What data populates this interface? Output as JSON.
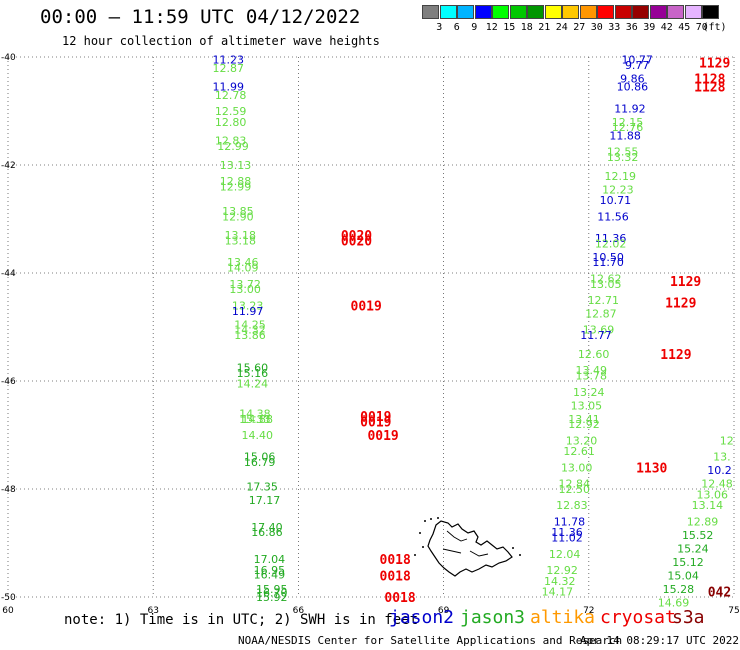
{
  "header": {
    "title": "00:00 – 11:59 UTC 04/12/2022",
    "subtitle": "12 hour collection of altimeter wave heights"
  },
  "legend": {
    "unit": "(ft)",
    "bins": [
      {
        "label": "3",
        "color": "#7f7f7f"
      },
      {
        "label": "6",
        "color": "#00ffff"
      },
      {
        "label": "9",
        "color": "#00b4ff"
      },
      {
        "label": "12",
        "color": "#0000ff"
      },
      {
        "label": "15",
        "color": "#00ff00"
      },
      {
        "label": "18",
        "color": "#00c800"
      },
      {
        "label": "21",
        "color": "#009600"
      },
      {
        "label": "24",
        "color": "#ffff00"
      },
      {
        "label": "27",
        "color": "#ffc800"
      },
      {
        "label": "30",
        "color": "#ff9600"
      },
      {
        "label": "33",
        "color": "#ff0000"
      },
      {
        "label": "36",
        "color": "#c80000"
      },
      {
        "label": "39",
        "color": "#960000"
      },
      {
        "label": "42",
        "color": "#960096"
      },
      {
        "label": "45",
        "color": "#c864c8"
      },
      {
        "label": "70",
        "color": "#e6b4ff"
      },
      {
        "label": "",
        "color": "#000000"
      }
    ]
  },
  "map": {
    "lon_range": [
      60,
      75
    ],
    "lat_range": [
      -50,
      -40
    ],
    "lon_ticks": [
      "60",
      "63",
      "66",
      "69",
      "72",
      "75"
    ],
    "lat_ticks": [
      "-40",
      "-42",
      "-44",
      "-46",
      "-48",
      "-50"
    ]
  },
  "colors": {
    "jason2": "#0000cc",
    "jason3": "#22aa22",
    "jason3_obs": "#66dd44",
    "altika": "#ff9900",
    "cryosat": "#ee0000",
    "s3a": "#880000"
  },
  "observations": [
    {
      "lon": 64.55,
      "lat": -40.05,
      "v": "11.23",
      "s": "jason2"
    },
    {
      "lon": 64.55,
      "lat": -40.2,
      "v": "12.87",
      "s": "jason3_obs"
    },
    {
      "lon": 64.55,
      "lat": -40.55,
      "v": "11.99",
      "s": "jason2"
    },
    {
      "lon": 64.6,
      "lat": -40.7,
      "v": "12.78",
      "s": "jason3_obs"
    },
    {
      "lon": 64.6,
      "lat": -41.0,
      "v": "12.59",
      "s": "jason3_obs"
    },
    {
      "lon": 64.6,
      "lat": -41.2,
      "v": "12.80",
      "s": "jason3_obs"
    },
    {
      "lon": 64.6,
      "lat": -41.55,
      "v": "12.83",
      "s": "jason3_obs"
    },
    {
      "lon": 64.65,
      "lat": -41.65,
      "v": "12.99",
      "s": "jason3_obs"
    },
    {
      "lon": 64.7,
      "lat": -42.0,
      "v": "13.13",
      "s": "jason3_obs"
    },
    {
      "lon": 64.7,
      "lat": -42.3,
      "v": "12.88",
      "s": "jason3_obs"
    },
    {
      "lon": 64.7,
      "lat": -42.4,
      "v": "12.99",
      "s": "jason3_obs"
    },
    {
      "lon": 64.75,
      "lat": -42.85,
      "v": "13.85",
      "s": "jason3_obs"
    },
    {
      "lon": 64.75,
      "lat": -42.95,
      "v": "12.90",
      "s": "jason3_obs"
    },
    {
      "lon": 64.8,
      "lat": -43.3,
      "v": "13.18",
      "s": "jason3_obs"
    },
    {
      "lon": 64.8,
      "lat": -43.4,
      "v": "13.18",
      "s": "jason3_obs"
    },
    {
      "lon": 64.85,
      "lat": -43.8,
      "v": "13.46",
      "s": "jason3_obs"
    },
    {
      "lon": 64.85,
      "lat": -43.9,
      "v": "14.09",
      "s": "jason3_obs"
    },
    {
      "lon": 64.9,
      "lat": -44.2,
      "v": "13.72",
      "s": "jason3_obs"
    },
    {
      "lon": 64.9,
      "lat": -44.3,
      "v": "13.00",
      "s": "jason3_obs"
    },
    {
      "lon": 64.95,
      "lat": -44.6,
      "v": "13.23",
      "s": "jason3_obs"
    },
    {
      "lon": 64.95,
      "lat": -44.7,
      "v": "11.97",
      "s": "jason2"
    },
    {
      "lon": 65.0,
      "lat": -44.95,
      "v": "14.25",
      "s": "jason3_obs"
    },
    {
      "lon": 65.0,
      "lat": -45.05,
      "v": "14.32",
      "s": "jason3_obs"
    },
    {
      "lon": 65.0,
      "lat": -45.15,
      "v": "13.86",
      "s": "jason3_obs"
    },
    {
      "lon": 65.05,
      "lat": -45.75,
      "v": "15.60",
      "s": "jason3"
    },
    {
      "lon": 65.05,
      "lat": -45.85,
      "v": "15.16",
      "s": "jason3"
    },
    {
      "lon": 65.05,
      "lat": -46.05,
      "v": "14.24",
      "s": "jason3_obs"
    },
    {
      "lon": 65.1,
      "lat": -46.6,
      "v": "14.38",
      "s": "jason3_obs"
    },
    {
      "lon": 65.1,
      "lat": -46.7,
      "v": "15.33",
      "s": "jason3_obs"
    },
    {
      "lon": 65.15,
      "lat": -46.7,
      "v": "14.88",
      "s": "jason3_obs"
    },
    {
      "lon": 65.15,
      "lat": -47.0,
      "v": "14.40",
      "s": "jason3_obs"
    },
    {
      "lon": 65.2,
      "lat": -47.4,
      "v": "15.06",
      "s": "jason3"
    },
    {
      "lon": 65.2,
      "lat": -47.5,
      "v": "16.79",
      "s": "jason3"
    },
    {
      "lon": 65.25,
      "lat": -47.95,
      "v": "17.35",
      "s": "jason3"
    },
    {
      "lon": 65.3,
      "lat": -48.2,
      "v": "17.17",
      "s": "jason3"
    },
    {
      "lon": 65.35,
      "lat": -48.7,
      "v": "17.40",
      "s": "jason3"
    },
    {
      "lon": 65.35,
      "lat": -48.8,
      "v": "16.86",
      "s": "jason3"
    },
    {
      "lon": 65.4,
      "lat": -49.3,
      "v": "17.04",
      "s": "jason3"
    },
    {
      "lon": 65.4,
      "lat": -49.5,
      "v": "16.95",
      "s": "jason3"
    },
    {
      "lon": 65.4,
      "lat": -49.58,
      "v": "16.49",
      "s": "jason3"
    },
    {
      "lon": 65.45,
      "lat": -49.85,
      "v": "15.95",
      "s": "jason3"
    },
    {
      "lon": 65.45,
      "lat": -49.92,
      "v": "16.70",
      "s": "jason3"
    },
    {
      "lon": 65.45,
      "lat": -50.0,
      "v": "15.92",
      "s": "jason3"
    },
    {
      "lon": 73.0,
      "lat": -40.05,
      "v": "10.77",
      "s": "jason2"
    },
    {
      "lon": 73.0,
      "lat": -40.15,
      "v": "9.77",
      "s": "jason2"
    },
    {
      "lon": 72.9,
      "lat": -40.4,
      "v": "9.86",
      "s": "jason2"
    },
    {
      "lon": 72.9,
      "lat": -40.55,
      "v": "10.86",
      "s": "jason2"
    },
    {
      "lon": 72.85,
      "lat": -40.95,
      "v": "11.92",
      "s": "jason2"
    },
    {
      "lon": 72.8,
      "lat": -41.2,
      "v": "12.15",
      "s": "jason3_obs"
    },
    {
      "lon": 72.8,
      "lat": -41.3,
      "v": "12.76",
      "s": "jason3_obs"
    },
    {
      "lon": 72.75,
      "lat": -41.45,
      "v": "11.88",
      "s": "jason2"
    },
    {
      "lon": 72.7,
      "lat": -41.75,
      "v": "12.55",
      "s": "jason3_obs"
    },
    {
      "lon": 72.7,
      "lat": -41.85,
      "v": "13.32",
      "s": "jason3_obs"
    },
    {
      "lon": 72.65,
      "lat": -42.2,
      "v": "12.19",
      "s": "jason3_obs"
    },
    {
      "lon": 72.6,
      "lat": -42.45,
      "v": "12.23",
      "s": "jason3_obs"
    },
    {
      "lon": 72.55,
      "lat": -42.65,
      "v": "10.71",
      "s": "jason2"
    },
    {
      "lon": 72.5,
      "lat": -42.95,
      "v": "11.56",
      "s": "jason2"
    },
    {
      "lon": 72.45,
      "lat": -43.35,
      "v": "11.36",
      "s": "jason2"
    },
    {
      "lon": 72.45,
      "lat": -43.45,
      "v": "12.02",
      "s": "jason3_obs"
    },
    {
      "lon": 72.4,
      "lat": -43.7,
      "v": "10.50",
      "s": "jason2"
    },
    {
      "lon": 72.4,
      "lat": -43.8,
      "v": "11.70",
      "s": "jason2"
    },
    {
      "lon": 72.35,
      "lat": -44.1,
      "v": "12.62",
      "s": "jason3_obs"
    },
    {
      "lon": 72.35,
      "lat": -44.2,
      "v": "13.05",
      "s": "jason3_obs"
    },
    {
      "lon": 72.3,
      "lat": -44.5,
      "v": "12.71",
      "s": "jason3_obs"
    },
    {
      "lon": 72.25,
      "lat": -44.75,
      "v": "12.87",
      "s": "jason3_obs"
    },
    {
      "lon": 72.2,
      "lat": -45.05,
      "v": "13.69",
      "s": "jason3_obs"
    },
    {
      "lon": 72.15,
      "lat": -45.15,
      "v": "11.77",
      "s": "jason2"
    },
    {
      "lon": 72.1,
      "lat": -45.5,
      "v": "12.60",
      "s": "jason3_obs"
    },
    {
      "lon": 72.05,
      "lat": -45.8,
      "v": "13.49",
      "s": "jason3_obs"
    },
    {
      "lon": 72.05,
      "lat": -45.9,
      "v": "13.78",
      "s": "jason3_obs"
    },
    {
      "lon": 72.0,
      "lat": -46.2,
      "v": "13.24",
      "s": "jason3_obs"
    },
    {
      "lon": 71.95,
      "lat": -46.45,
      "v": "13.05",
      "s": "jason3_obs"
    },
    {
      "lon": 71.9,
      "lat": -46.7,
      "v": "13.41",
      "s": "jason3_obs"
    },
    {
      "lon": 71.9,
      "lat": -46.8,
      "v": "12.92",
      "s": "jason3_obs"
    },
    {
      "lon": 71.85,
      "lat": -47.1,
      "v": "13.20",
      "s": "jason3_obs"
    },
    {
      "lon": 71.8,
      "lat": -47.3,
      "v": "12.61",
      "s": "jason3_obs"
    },
    {
      "lon": 71.75,
      "lat": -47.6,
      "v": "13.00",
      "s": "jason3_obs"
    },
    {
      "lon": 71.7,
      "lat": -47.9,
      "v": "12.84",
      "s": "jason3_obs"
    },
    {
      "lon": 71.7,
      "lat": -48.0,
      "v": "12.50",
      "s": "jason3_obs"
    },
    {
      "lon": 71.65,
      "lat": -48.3,
      "v": "12.83",
      "s": "jason3_obs"
    },
    {
      "lon": 71.6,
      "lat": -48.6,
      "v": "11.78",
      "s": "jason2"
    },
    {
      "lon": 71.55,
      "lat": -48.8,
      "v": "11.36",
      "s": "jason2"
    },
    {
      "lon": 71.55,
      "lat": -48.9,
      "v": "11.02",
      "s": "jason2"
    },
    {
      "lon": 71.5,
      "lat": -49.2,
      "v": "12.04",
      "s": "jason3_obs"
    },
    {
      "lon": 71.45,
      "lat": -49.5,
      "v": "12.92",
      "s": "jason3_obs"
    },
    {
      "lon": 71.4,
      "lat": -49.7,
      "v": "14.32",
      "s": "jason3_obs"
    },
    {
      "lon": 71.35,
      "lat": -49.9,
      "v": "14.17",
      "s": "jason3_obs"
    },
    {
      "lon": 74.85,
      "lat": -47.1,
      "v": "12",
      "s": "jason3_obs"
    },
    {
      "lon": 74.75,
      "lat": -47.4,
      "v": "13.",
      "s": "jason3_obs"
    },
    {
      "lon": 74.7,
      "lat": -47.65,
      "v": "10.2",
      "s": "jason2"
    },
    {
      "lon": 74.65,
      "lat": -47.9,
      "v": "12.48",
      "s": "jason3_obs"
    },
    {
      "lon": 74.55,
      "lat": -48.1,
      "v": "13.06",
      "s": "jason3_obs"
    },
    {
      "lon": 74.45,
      "lat": -48.3,
      "v": "13.14",
      "s": "jason3_obs"
    },
    {
      "lon": 74.35,
      "lat": -48.6,
      "v": "12.89",
      "s": "jason3_obs"
    },
    {
      "lon": 74.25,
      "lat": -48.85,
      "v": "15.52",
      "s": "jason3"
    },
    {
      "lon": 74.15,
      "lat": -49.1,
      "v": "15.24",
      "s": "jason3"
    },
    {
      "lon": 74.05,
      "lat": -49.35,
      "v": "15.12",
      "s": "jason3"
    },
    {
      "lon": 73.95,
      "lat": -49.6,
      "v": "15.04",
      "s": "jason3"
    },
    {
      "lon": 73.85,
      "lat": -49.85,
      "v": "15.28",
      "s": "jason3"
    },
    {
      "lon": 73.75,
      "lat": -50.1,
      "v": "14.69",
      "s": "jason3_obs"
    }
  ],
  "pass_times": [
    {
      "lon": 67.2,
      "lat": -43.3,
      "v": "0020",
      "s": "cryosat"
    },
    {
      "lon": 67.2,
      "lat": -43.4,
      "v": "0020",
      "s": "cryosat"
    },
    {
      "lon": 67.4,
      "lat": -44.6,
      "v": "0019",
      "s": "cryosat"
    },
    {
      "lon": 67.6,
      "lat": -46.65,
      "v": "0019",
      "s": "cryosat"
    },
    {
      "lon": 67.6,
      "lat": -46.75,
      "v": "0019",
      "s": "cryosat"
    },
    {
      "lon": 67.75,
      "lat": -47.0,
      "v": "0019",
      "s": "cryosat"
    },
    {
      "lon": 68.0,
      "lat": -49.3,
      "v": "0018",
      "s": "cryosat"
    },
    {
      "lon": 68.0,
      "lat": -49.6,
      "v": "0018",
      "s": "cryosat"
    },
    {
      "lon": 68.1,
      "lat": -50.0,
      "v": "0018",
      "s": "cryosat"
    },
    {
      "lon": 74.6,
      "lat": -40.1,
      "v": "1129",
      "s": "cryosat"
    },
    {
      "lon": 74.5,
      "lat": -40.4,
      "v": "1128",
      "s": "cryosat"
    },
    {
      "lon": 74.5,
      "lat": -40.55,
      "v": "1128",
      "s": "cryosat"
    },
    {
      "lon": 74.0,
      "lat": -44.15,
      "v": "1129",
      "s": "cryosat"
    },
    {
      "lon": 73.9,
      "lat": -44.55,
      "v": "1129",
      "s": "cryosat"
    },
    {
      "lon": 73.8,
      "lat": -45.5,
      "v": "1129",
      "s": "cryosat"
    },
    {
      "lon": 73.3,
      "lat": -47.6,
      "v": "1130",
      "s": "cryosat"
    },
    {
      "lon": 74.7,
      "lat": -49.9,
      "v": "042",
      "s": "s3a"
    }
  ],
  "footer": {
    "note": "note: 1) Time is in UTC; 2) SWH is in feet",
    "satellites": [
      {
        "name": "jason2",
        "color": "#0000cc"
      },
      {
        "name": "jason3",
        "color": "#22aa22"
      },
      {
        "name": "altika",
        "color": "#ff9900"
      },
      {
        "name": "cryosat",
        "color": "#ee0000"
      },
      {
        "name": "s3a",
        "color": "#880000"
      }
    ],
    "credit": "NOAA/NESDIS Center for Satellite Applications and Research",
    "timestamp": "Apr 14 08:29:17 UTC 2022"
  }
}
